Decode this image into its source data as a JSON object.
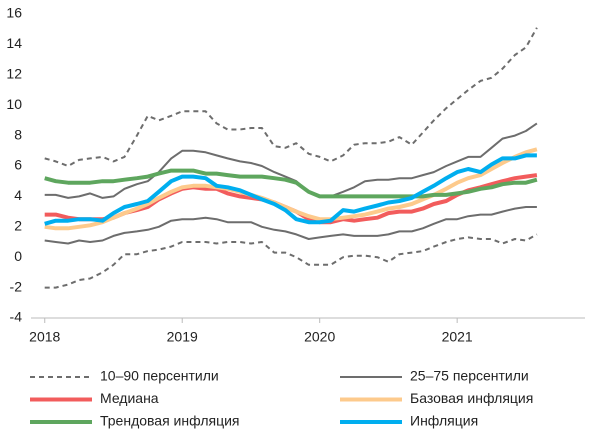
{
  "chart_data": {
    "type": "line",
    "x": [
      2018,
      2018.08,
      2018.17,
      2018.25,
      2018.33,
      2018.42,
      2018.5,
      2018.58,
      2018.67,
      2018.75,
      2018.83,
      2018.92,
      2019,
      2019.08,
      2019.17,
      2019.25,
      2019.33,
      2019.42,
      2019.5,
      2019.58,
      2019.67,
      2019.75,
      2019.83,
      2019.92,
      2020,
      2020.08,
      2020.17,
      2020.25,
      2020.33,
      2020.42,
      2020.5,
      2020.58,
      2020.67,
      2020.75,
      2020.83,
      2020.92,
      2021,
      2021.08,
      2021.17,
      2021.25,
      2021.33,
      2021.42,
      2021.5,
      2021.58
    ],
    "xlim": [
      2017.9,
      2021.93
    ],
    "xticks": [
      2018,
      2019,
      2020,
      2021
    ],
    "ylim": [
      -4,
      16
    ],
    "yticks": [
      -4,
      -2,
      0,
      2,
      4,
      6,
      8,
      10,
      12,
      14,
      16
    ],
    "grid": false,
    "series": [
      {
        "name": "10–90 персентили",
        "color": "#6d6d6d",
        "dashed": true,
        "upper": [
          6.5,
          6.3,
          6.0,
          6.4,
          6.5,
          6.6,
          6.3,
          6.6,
          8.0,
          9.3,
          9.0,
          9.3,
          9.6,
          9.6,
          9.6,
          8.8,
          8.4,
          8.4,
          8.5,
          8.5,
          7.3,
          7.2,
          7.5,
          6.8,
          6.6,
          6.3,
          6.7,
          7.4,
          7.5,
          7.5,
          7.6,
          7.9,
          7.4,
          8.2,
          9.0,
          9.8,
          10.4,
          11.0,
          11.6,
          11.8,
          12.4,
          13.3,
          13.8,
          15.1
        ],
        "lower": [
          -2.0,
          -2.0,
          -1.8,
          -1.5,
          -1.4,
          -1.0,
          -0.5,
          0.2,
          0.2,
          0.4,
          0.5,
          0.7,
          1.0,
          1.0,
          1.0,
          0.9,
          1.0,
          1.0,
          0.9,
          1.0,
          0.3,
          0.3,
          0,
          -0.5,
          -0.5,
          -0.5,
          0,
          0.1,
          0.1,
          0,
          -0.3,
          0.2,
          0.3,
          0.4,
          0.7,
          1.0,
          1.2,
          1.3,
          1.2,
          1.2,
          0.9,
          1.2,
          1.1,
          1.5
        ]
      },
      {
        "name": "25–75  персентили",
        "color": "#6d6d6d",
        "dashed": false,
        "upper": [
          4.1,
          4.1,
          3.9,
          4.0,
          4.2,
          3.9,
          4.0,
          4.5,
          4.8,
          5.0,
          5.6,
          6.5,
          7.0,
          7.0,
          6.9,
          6.7,
          6.5,
          6.3,
          6.2,
          6.0,
          5.6,
          5.3,
          5.0,
          4.3,
          4.0,
          4.0,
          4.3,
          4.6,
          5.0,
          5.1,
          5.1,
          5.2,
          5.2,
          5.4,
          5.6,
          6.0,
          6.3,
          6.6,
          6.6,
          7.2,
          7.8,
          8.0,
          8.3,
          8.8
        ],
        "lower": [
          1.1,
          1.0,
          0.9,
          1.1,
          1.0,
          1.1,
          1.4,
          1.6,
          1.7,
          1.8,
          2.0,
          2.4,
          2.5,
          2.5,
          2.6,
          2.5,
          2.3,
          2.3,
          2.3,
          2.0,
          1.8,
          1.7,
          1.5,
          1.2,
          1.3,
          1.4,
          1.5,
          1.4,
          1.4,
          1.4,
          1.5,
          1.7,
          1.7,
          1.9,
          2.2,
          2.5,
          2.5,
          2.7,
          2.8,
          2.8,
          3.0,
          3.2,
          3.3,
          3.3
        ]
      },
      {
        "name": "Медиана",
        "color": "#f25c5c",
        "values": [
          2.8,
          2.8,
          2.6,
          2.5,
          2.5,
          2.5,
          2.6,
          2.9,
          3.1,
          3.3,
          3.8,
          4.2,
          4.5,
          4.6,
          4.5,
          4.5,
          4.2,
          4.0,
          3.9,
          3.8,
          3.6,
          3.3,
          3.0,
          2.5,
          2.3,
          2.3,
          2.5,
          2.4,
          2.5,
          2.6,
          2.9,
          3.0,
          3.0,
          3.2,
          3.5,
          3.7,
          4.1,
          4.4,
          4.6,
          4.8,
          5.0,
          5.2,
          5.3,
          5.4
        ]
      },
      {
        "name": "Базовая инфляция",
        "color": "#fdca8c",
        "values": [
          2.0,
          1.9,
          1.9,
          2.0,
          2.1,
          2.3,
          2.6,
          2.9,
          3.2,
          3.5,
          3.9,
          4.3,
          4.6,
          4.7,
          4.7,
          4.6,
          4.5,
          4.3,
          4.1,
          3.9,
          3.6,
          3.3,
          3.0,
          2.7,
          2.5,
          2.5,
          2.6,
          2.7,
          2.8,
          3.0,
          3.2,
          3.3,
          3.5,
          3.8,
          4.1,
          4.5,
          4.9,
          5.2,
          5.4,
          5.8,
          6.2,
          6.6,
          6.9,
          7.1
        ]
      },
      {
        "name": "Трендовая инфляция",
        "color": "#5ea65e",
        "values": [
          5.2,
          5.0,
          4.9,
          4.9,
          4.9,
          5.0,
          5.0,
          5.1,
          5.2,
          5.3,
          5.5,
          5.7,
          5.7,
          5.7,
          5.5,
          5.5,
          5.4,
          5.3,
          5.3,
          5.3,
          5.2,
          5.1,
          4.9,
          4.3,
          4.0,
          4.0,
          4.0,
          4.0,
          4.0,
          4.0,
          4.0,
          4.0,
          4.0,
          4.0,
          4.1,
          4.1,
          4.2,
          4.3,
          4.5,
          4.6,
          4.8,
          4.9,
          4.9,
          5.1
        ]
      },
      {
        "name": "Инфляция",
        "color": "#00aeef",
        "values": [
          2.2,
          2.4,
          2.4,
          2.5,
          2.5,
          2.4,
          2.9,
          3.3,
          3.5,
          3.7,
          4.3,
          5.0,
          5.3,
          5.3,
          5.2,
          4.7,
          4.6,
          4.4,
          4.1,
          3.8,
          3.5,
          3.1,
          2.5,
          2.3,
          2.3,
          2.4,
          3.1,
          3.0,
          3.2,
          3.4,
          3.6,
          3.7,
          3.9,
          4.3,
          4.7,
          5.2,
          5.6,
          5.8,
          5.6,
          6.1,
          6.5,
          6.5,
          6.7,
          6.7
        ]
      }
    ]
  }
}
